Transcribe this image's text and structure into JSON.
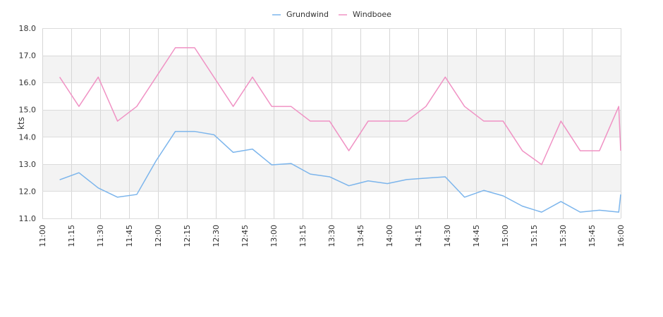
{
  "chart_data": {
    "type": "line",
    "title": "",
    "xlabel": "",
    "ylabel": "kts",
    "ylim": [
      11.0,
      18.0
    ],
    "y_ticks": [
      "11.0",
      "12.0",
      "13.0",
      "14.0",
      "15.0",
      "16.0",
      "17.0",
      "18.0"
    ],
    "x_range": [
      "11:00",
      "16:00"
    ],
    "x_ticks": [
      "11:00",
      "11:15",
      "11:30",
      "11:45",
      "12:00",
      "12:15",
      "12:30",
      "12:45",
      "13:00",
      "13:15",
      "13:30",
      "13:45",
      "14:00",
      "14:15",
      "14:30",
      "14:45",
      "15:00",
      "15:15",
      "15:30",
      "15:45",
      "16:00"
    ],
    "grid": true,
    "banded_background": true,
    "legend_position": "top-center",
    "series": [
      {
        "name": "Grundwind",
        "color": "#7cb5ec",
        "points": [
          [
            "11:09",
            12.42
          ],
          [
            "11:19",
            12.68
          ],
          [
            "11:29",
            12.12
          ],
          [
            "11:39",
            11.78
          ],
          [
            "11:49",
            11.88
          ],
          [
            "11:59",
            13.12
          ],
          [
            "12:09",
            14.2
          ],
          [
            "12:19",
            14.2
          ],
          [
            "12:29",
            14.08
          ],
          [
            "12:39",
            13.43
          ],
          [
            "12:49",
            13.55
          ],
          [
            "12:59",
            12.97
          ],
          [
            "13:09",
            13.02
          ],
          [
            "13:19",
            12.63
          ],
          [
            "13:29",
            12.53
          ],
          [
            "13:39",
            12.2
          ],
          [
            "13:49",
            12.38
          ],
          [
            "13:59",
            12.28
          ],
          [
            "14:09",
            12.43
          ],
          [
            "14:19",
            12.48
          ],
          [
            "14:29",
            12.53
          ],
          [
            "14:39",
            11.78
          ],
          [
            "14:49",
            12.03
          ],
          [
            "14:59",
            11.83
          ],
          [
            "15:09",
            11.45
          ],
          [
            "15:19",
            11.23
          ],
          [
            "15:29",
            11.62
          ],
          [
            "15:39",
            11.23
          ],
          [
            "15:49",
            11.3
          ],
          [
            "15:59",
            11.23
          ],
          [
            "16:00",
            11.88
          ]
        ]
      },
      {
        "name": "Windboee",
        "color": "#f092c4",
        "points": [
          [
            "11:09",
            16.2
          ],
          [
            "11:19",
            15.12
          ],
          [
            "11:29",
            16.2
          ],
          [
            "11:39",
            14.58
          ],
          [
            "11:49",
            15.12
          ],
          [
            "11:59",
            16.2
          ],
          [
            "12:09",
            17.28
          ],
          [
            "12:19",
            17.28
          ],
          [
            "12:29",
            16.2
          ],
          [
            "12:39",
            15.12
          ],
          [
            "12:49",
            16.2
          ],
          [
            "12:59",
            15.12
          ],
          [
            "13:09",
            15.12
          ],
          [
            "13:19",
            14.58
          ],
          [
            "13:29",
            14.58
          ],
          [
            "13:39",
            13.49
          ],
          [
            "13:49",
            14.58
          ],
          [
            "13:59",
            14.58
          ],
          [
            "14:09",
            14.58
          ],
          [
            "14:19",
            15.12
          ],
          [
            "14:29",
            16.2
          ],
          [
            "14:39",
            15.12
          ],
          [
            "14:49",
            14.58
          ],
          [
            "14:59",
            14.58
          ],
          [
            "15:09",
            13.49
          ],
          [
            "15:19",
            12.98
          ],
          [
            "15:29",
            14.58
          ],
          [
            "15:39",
            13.49
          ],
          [
            "15:49",
            13.49
          ],
          [
            "15:59",
            15.12
          ],
          [
            "16:00",
            13.49
          ]
        ]
      }
    ]
  }
}
